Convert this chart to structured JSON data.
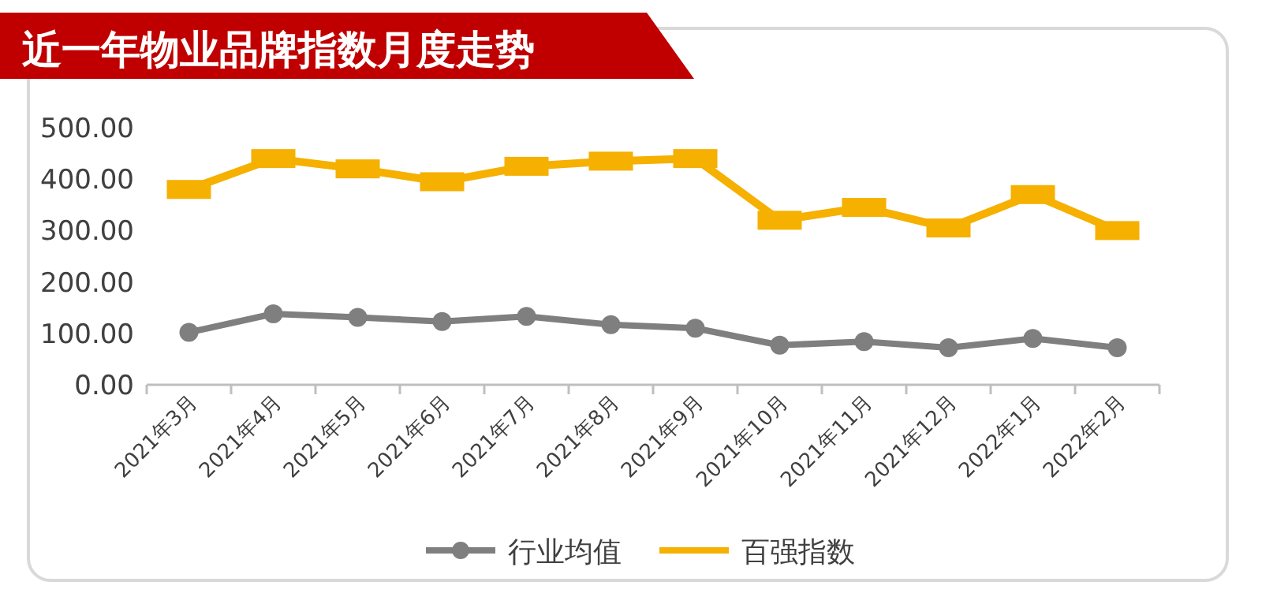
{
  "chart_data": {
    "type": "line",
    "title": "近一年物业品牌指数月度走势",
    "categories": [
      "2021年3月",
      "2021年4月",
      "2021年5月",
      "2021年6月",
      "2021年7月",
      "2021年8月",
      "2021年9月",
      "2021年10月",
      "2021年11月",
      "2021年12月",
      "2022年1月",
      "2022年2月"
    ],
    "series": [
      {
        "name": "行业均值",
        "color": "#7f7f7f",
        "marker": "circle",
        "values": [
          102,
          138,
          131,
          123,
          133,
          117,
          110,
          77,
          84,
          72,
          90,
          72
        ]
      },
      {
        "name": "百强指数",
        "color": "#f5b000",
        "marker": "square",
        "values": [
          380,
          440,
          420,
          395,
          425,
          435,
          440,
          320,
          345,
          305,
          370,
          300
        ]
      }
    ],
    "ylim": [
      0,
      500
    ],
    "yticks": [
      {
        "value": 0,
        "label": "0.00"
      },
      {
        "value": 100,
        "label": "100.00"
      },
      {
        "value": 200,
        "label": "200.00"
      },
      {
        "value": 300,
        "label": "300.00"
      },
      {
        "value": 400,
        "label": "400.00"
      },
      {
        "value": 500,
        "label": "500.00"
      }
    ],
    "grid": false,
    "legend": "bottom",
    "line_style": "solid"
  }
}
